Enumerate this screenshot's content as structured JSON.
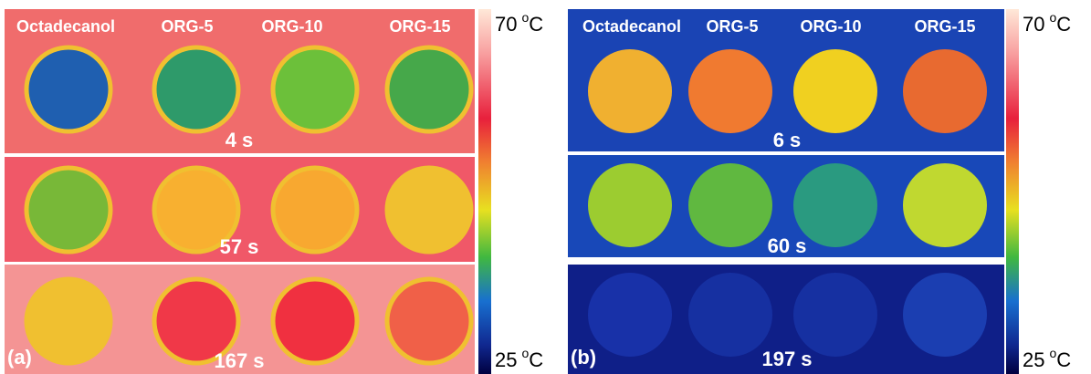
{
  "panels": [
    {
      "label": "(a)",
      "samples": [
        "Octadecanol",
        "ORG-5",
        "ORG-10",
        "ORG-15"
      ],
      "frames": [
        {
          "time": "4 s",
          "background": "#f06c6c",
          "spots": [
            "#1f5fb0",
            "#2e9a6a",
            "#6cc03a",
            "#46a84a"
          ]
        },
        {
          "time": "57 s",
          "background": "#f05868",
          "spots": [
            "#78b838",
            "#f8b030",
            "#f8a830",
            "#f0c030"
          ]
        },
        {
          "time": "167 s",
          "background": "#f49494",
          "spots": [
            "#f0c030",
            "#f03848",
            "#f03040",
            "#f06048"
          ]
        }
      ],
      "colorbar": {
        "max": "70",
        "min": "25",
        "degree": "o",
        "unit": "C"
      }
    },
    {
      "label": "(b)",
      "samples": [
        "Octadecanol",
        "ORG-5",
        "ORG-10",
        "ORG-15"
      ],
      "frames": [
        {
          "time": "6 s",
          "background": "#1a44b4",
          "spots": [
            "#f0b030",
            "#f07a30",
            "#f0d020",
            "#e86a30"
          ]
        },
        {
          "time": "60 s",
          "background": "#1848b8",
          "spots": [
            "#9ccc30",
            "#60b840",
            "#2a9a80",
            "#c0d830"
          ]
        },
        {
          "time": "197 s",
          "background": "#0f1f88",
          "spots": [
            "#1a36b0",
            "#1834a8",
            "#1834a8",
            "#1e46bc"
          ]
        }
      ],
      "colorbar": {
        "max": "70",
        "min": "25",
        "degree": "o",
        "unit": "C"
      }
    }
  ]
}
